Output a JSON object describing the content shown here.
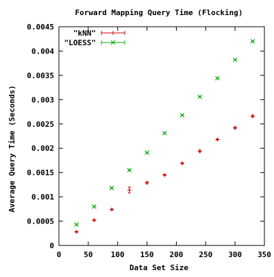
{
  "chart_data": {
    "type": "scatter",
    "title": "Forward Mapping Query Time (Flocking)",
    "xlabel": "Data Set Size",
    "ylabel": "Average Query Time (Seconds)",
    "xlim": [
      0,
      350
    ],
    "ylim": [
      0,
      0.0045
    ],
    "x_ticks": [
      0,
      50,
      100,
      150,
      200,
      250,
      300,
      350
    ],
    "x_tick_labels": [
      "0",
      "50",
      "100",
      "150",
      "200",
      "250",
      "300",
      "350"
    ],
    "y_ticks": [
      0,
      0.0005,
      0.001,
      0.0015,
      0.002,
      0.0025,
      0.003,
      0.0035,
      0.004,
      0.0045
    ],
    "y_tick_labels": [
      "0",
      "0.0005",
      "0.001",
      "0.0015",
      "0.002",
      "0.0025",
      "0.003",
      "0.0035",
      "0.004",
      "0.0045"
    ],
    "grid": false,
    "legend_position": "top-left",
    "series": [
      {
        "name": "\"kNN\"",
        "color": "#cc0000",
        "marker": "plus",
        "x": [
          30,
          60,
          90,
          120,
          150,
          180,
          210,
          240,
          270,
          300,
          330
        ],
        "y": [
          0.00028,
          0.00052,
          0.00074,
          0.00114,
          0.00129,
          0.00145,
          0.00169,
          0.00194,
          0.00218,
          0.00242,
          0.00266
        ],
        "err": [
          1e-05,
          1e-05,
          1e-05,
          6e-05,
          2e-05,
          1e-05,
          1e-05,
          2e-05,
          1e-05,
          2e-05,
          2e-05
        ]
      },
      {
        "name": "\"LOESS\"",
        "color": "#00aa00",
        "marker": "cross",
        "x": [
          30,
          60,
          90,
          120,
          150,
          180,
          210,
          240,
          270,
          300,
          330
        ],
        "y": [
          0.00043,
          0.0008,
          0.00118,
          0.00155,
          0.00191,
          0.00231,
          0.00268,
          0.00306,
          0.00344,
          0.00382,
          0.0042
        ],
        "err": [
          1e-05,
          1e-05,
          1e-05,
          1e-05,
          1e-05,
          1e-05,
          1e-05,
          1e-05,
          1e-05,
          1e-05,
          1e-05
        ]
      }
    ]
  }
}
